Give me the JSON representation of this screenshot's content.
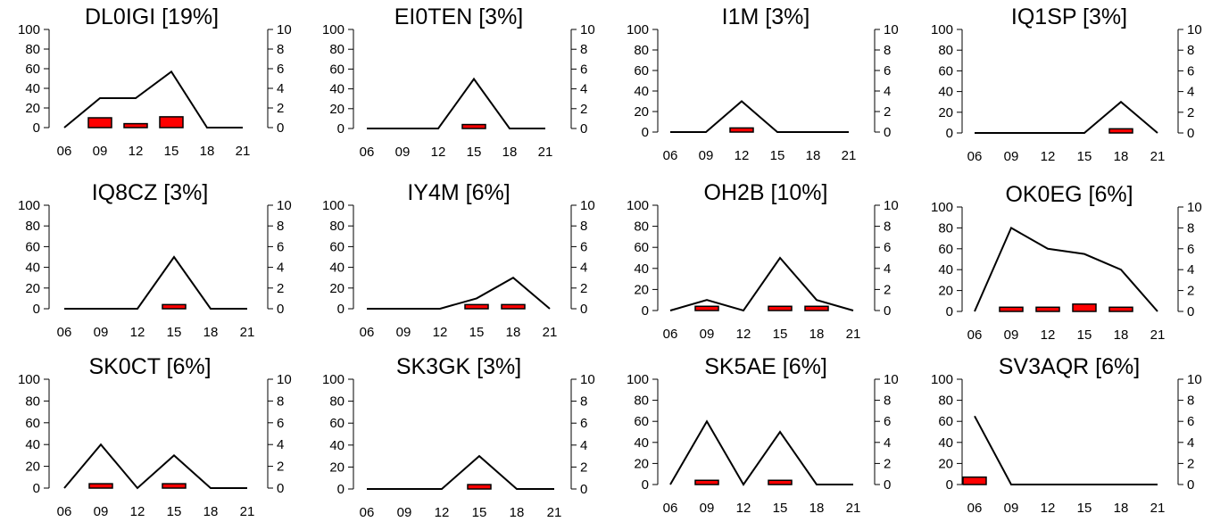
{
  "style": {
    "bar_fill": "#ff0000",
    "bar_stroke": "#000000",
    "line_color": "#000000",
    "axis_color": "#000000"
  },
  "chart_data": [
    {
      "type": "bar+line",
      "title": "DL0IGI [19%]",
      "categories": [
        "06",
        "09",
        "12",
        "15",
        "18",
        "21"
      ],
      "line_left_axis": [
        0,
        30,
        30,
        57,
        0,
        0
      ],
      "bars_right_axis": [
        0,
        1,
        0.4,
        1.1,
        0,
        0
      ],
      "left_ylim": [
        0,
        100
      ],
      "left_yticks": [
        "0",
        "20",
        "40",
        "60",
        "80",
        "100"
      ],
      "right_ylim": [
        0,
        10
      ],
      "right_yticks": [
        "0",
        "2",
        "4",
        "6",
        "8",
        "10"
      ],
      "grid": false
    },
    {
      "type": "bar+line",
      "title": "EI0TEN [3%]",
      "categories": [
        "06",
        "09",
        "12",
        "15",
        "18",
        "21"
      ],
      "line_left_axis": [
        0,
        0,
        0,
        50,
        0,
        0
      ],
      "bars_right_axis": [
        0,
        0,
        0,
        0.4,
        0,
        0
      ],
      "left_ylim": [
        0,
        100
      ],
      "left_yticks": [
        "0",
        "20",
        "40",
        "60",
        "80",
        "100"
      ],
      "right_ylim": [
        0,
        10
      ],
      "right_yticks": [
        "0",
        "2",
        "4",
        "6",
        "8",
        "10"
      ],
      "grid": false
    },
    {
      "type": "bar+line",
      "title": "I1M [3%]",
      "categories": [
        "06",
        "09",
        "12",
        "15",
        "18",
        "21"
      ],
      "line_left_axis": [
        0,
        0,
        30,
        0,
        0,
        0
      ],
      "bars_right_axis": [
        0,
        0,
        0.4,
        0,
        0,
        0
      ],
      "left_ylim": [
        0,
        100
      ],
      "left_yticks": [
        "0",
        "20",
        "40",
        "60",
        "80",
        "100"
      ],
      "right_ylim": [
        0,
        10
      ],
      "right_yticks": [
        "0",
        "2",
        "4",
        "6",
        "8",
        "10"
      ],
      "grid": false
    },
    {
      "type": "bar+line",
      "title": "IQ1SP [3%]",
      "categories": [
        "06",
        "09",
        "12",
        "15",
        "18",
        "21"
      ],
      "line_left_axis": [
        0,
        0,
        0,
        0,
        30,
        0
      ],
      "bars_right_axis": [
        0,
        0,
        0,
        0,
        0.4,
        0
      ],
      "left_ylim": [
        0,
        100
      ],
      "left_yticks": [
        "0",
        "20",
        "40",
        "60",
        "80",
        "100"
      ],
      "right_ylim": [
        0,
        10
      ],
      "right_yticks": [
        "0",
        "2",
        "4",
        "6",
        "8",
        "10"
      ],
      "grid": false
    },
    {
      "type": "bar+line",
      "title": "IQ8CZ [3%]",
      "categories": [
        "06",
        "09",
        "12",
        "15",
        "18",
        "21"
      ],
      "line_left_axis": [
        0,
        0,
        0,
        50,
        0,
        0
      ],
      "bars_right_axis": [
        0,
        0,
        0,
        0.4,
        0,
        0
      ],
      "left_ylim": [
        0,
        100
      ],
      "left_yticks": [
        "0",
        "20",
        "40",
        "60",
        "80",
        "100"
      ],
      "right_ylim": [
        0,
        10
      ],
      "right_yticks": [
        "0",
        "2",
        "4",
        "6",
        "8",
        "10"
      ],
      "grid": false
    },
    {
      "type": "bar+line",
      "title": "IY4M [6%]",
      "categories": [
        "06",
        "09",
        "12",
        "15",
        "18",
        "21"
      ],
      "line_left_axis": [
        0,
        0,
        0,
        10,
        30,
        0
      ],
      "bars_right_axis": [
        0,
        0,
        0,
        0.4,
        0.4,
        0
      ],
      "left_ylim": [
        0,
        100
      ],
      "left_yticks": [
        "0",
        "20",
        "40",
        "60",
        "80",
        "100"
      ],
      "right_ylim": [
        0,
        10
      ],
      "right_yticks": [
        "0",
        "2",
        "4",
        "6",
        "8",
        "10"
      ],
      "grid": false
    },
    {
      "type": "bar+line",
      "title": "OH2B [10%]",
      "categories": [
        "06",
        "09",
        "12",
        "15",
        "18",
        "21"
      ],
      "line_left_axis": [
        0,
        10,
        0,
        50,
        10,
        0
      ],
      "bars_right_axis": [
        0,
        0.4,
        0,
        0.4,
        0.4,
        0
      ],
      "left_ylim": [
        0,
        100
      ],
      "left_yticks": [
        "0",
        "20",
        "40",
        "60",
        "80",
        "100"
      ],
      "right_ylim": [
        0,
        10
      ],
      "right_yticks": [
        "0",
        "2",
        "4",
        "6",
        "8",
        "10"
      ],
      "grid": false
    },
    {
      "type": "bar+line",
      "title": "OK0EG [6%]",
      "categories": [
        "06",
        "09",
        "12",
        "15",
        "18",
        "21"
      ],
      "line_left_axis": [
        0,
        80,
        60,
        55,
        40,
        0
      ],
      "bars_right_axis": [
        0,
        0.4,
        0.4,
        0.7,
        0.4,
        0
      ],
      "left_ylim": [
        0,
        100
      ],
      "left_yticks": [
        "0",
        "20",
        "40",
        "60",
        "80",
        "100"
      ],
      "right_ylim": [
        0,
        10
      ],
      "right_yticks": [
        "0",
        "2",
        "4",
        "6",
        "8",
        "10"
      ],
      "grid": false
    },
    {
      "type": "bar+line",
      "title": "SK0CT [6%]",
      "categories": [
        "06",
        "09",
        "12",
        "15",
        "18",
        "21"
      ],
      "line_left_axis": [
        0,
        40,
        0,
        30,
        0,
        0
      ],
      "bars_right_axis": [
        0,
        0.4,
        0,
        0.4,
        0,
        0
      ],
      "left_ylim": [
        0,
        100
      ],
      "left_yticks": [
        "0",
        "20",
        "40",
        "60",
        "80",
        "100"
      ],
      "right_ylim": [
        0,
        10
      ],
      "right_yticks": [
        "0",
        "2",
        "4",
        "6",
        "8",
        "10"
      ],
      "grid": false
    },
    {
      "type": "bar+line",
      "title": "SK3GK [3%]",
      "categories": [
        "06",
        "09",
        "12",
        "15",
        "18",
        "21"
      ],
      "line_left_axis": [
        0,
        0,
        0,
        30,
        0,
        0
      ],
      "bars_right_axis": [
        0,
        0,
        0,
        0.4,
        0,
        0
      ],
      "left_ylim": [
        0,
        100
      ],
      "left_yticks": [
        "0",
        "20",
        "40",
        "60",
        "80",
        "100"
      ],
      "right_ylim": [
        0,
        10
      ],
      "right_yticks": [
        "0",
        "2",
        "4",
        "6",
        "8",
        "10"
      ],
      "grid": false
    },
    {
      "type": "bar+line",
      "title": "SK5AE [6%]",
      "categories": [
        "06",
        "09",
        "12",
        "15",
        "18",
        "21"
      ],
      "line_left_axis": [
        0,
        60,
        0,
        50,
        0,
        0
      ],
      "bars_right_axis": [
        0,
        0.4,
        0,
        0.4,
        0,
        0
      ],
      "left_ylim": [
        0,
        100
      ],
      "left_yticks": [
        "0",
        "20",
        "40",
        "60",
        "80",
        "100"
      ],
      "right_ylim": [
        0,
        10
      ],
      "right_yticks": [
        "0",
        "2",
        "4",
        "6",
        "8",
        "10"
      ],
      "grid": false
    },
    {
      "type": "bar+line",
      "title": "SV3AQR [6%]",
      "categories": [
        "06",
        "09",
        "12",
        "15",
        "18",
        "21"
      ],
      "line_left_axis": [
        65,
        0,
        0,
        0,
        0,
        0
      ],
      "bars_right_axis": [
        0.7,
        0,
        0,
        0,
        0,
        0
      ],
      "left_ylim": [
        0,
        100
      ],
      "left_yticks": [
        "0",
        "20",
        "40",
        "60",
        "80",
        "100"
      ],
      "right_ylim": [
        0,
        10
      ],
      "right_yticks": [
        "0",
        "2",
        "4",
        "6",
        "8",
        "10"
      ],
      "grid": false
    }
  ]
}
